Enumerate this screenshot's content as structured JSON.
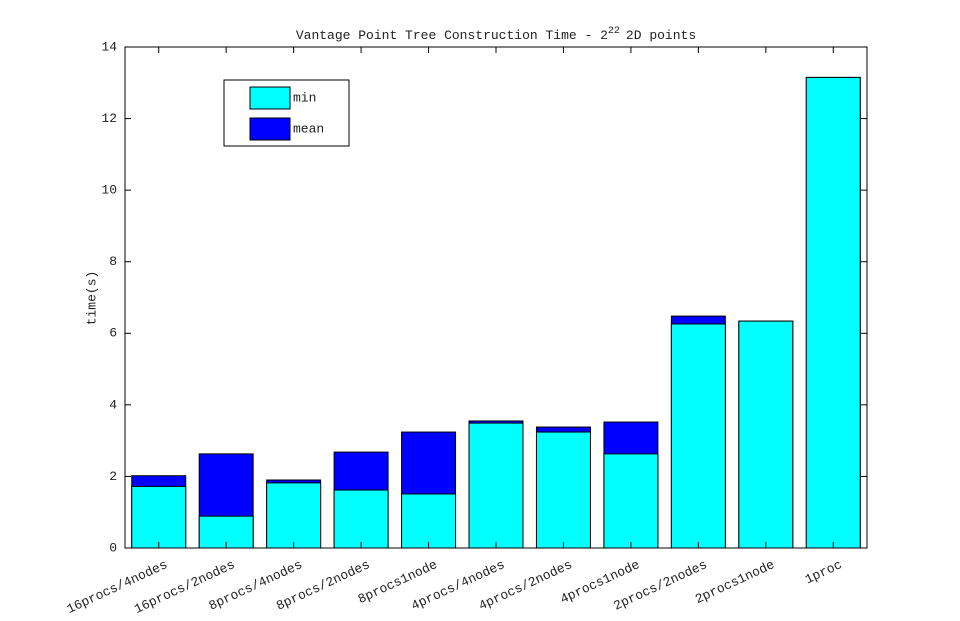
{
  "chart_data": {
    "type": "bar",
    "title": {
      "base": "Vantage Point Tree Construction Time - 2",
      "superscript": "22",
      "rest": "2D points"
    },
    "y_label": "time(s)",
    "categories": [
      "16procs/4nodes",
      "16procs/2nodes",
      "8procs/4nodes",
      "8procs/2nodes",
      "8procs1node",
      "4procs/4nodes",
      "4procs/2nodes",
      "4procs1node",
      "2procs/2nodes",
      "2procs1node",
      "1proc"
    ],
    "series": [
      {
        "name": "mean",
        "color": "#0000ff",
        "values": [
          2.02,
          2.63,
          1.9,
          2.68,
          3.24,
          3.55,
          3.38,
          3.52,
          6.48,
          6.34,
          13.15
        ]
      },
      {
        "name": "min",
        "color": "#00ffff",
        "values": [
          1.72,
          0.89,
          1.82,
          1.62,
          1.51,
          3.49,
          3.24,
          2.63,
          6.26,
          6.34,
          13.15
        ]
      }
    ],
    "legend_order": [
      1,
      0
    ],
    "ylim": [
      0,
      14
    ],
    "yticks": [
      0,
      2,
      4,
      6,
      8,
      10,
      12,
      14
    ],
    "grid": false
  }
}
